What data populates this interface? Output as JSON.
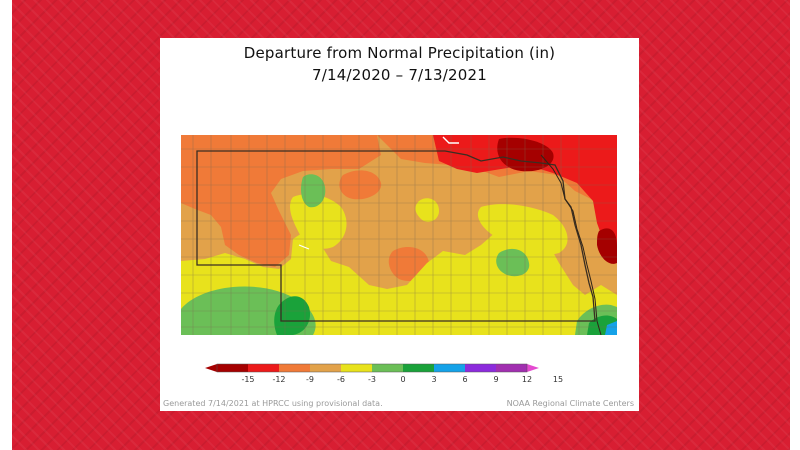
{
  "map": {
    "title": "Departure from Normal Precipitation (in)",
    "date_range": "7/14/2020 – 7/13/2021",
    "legend": {
      "ticks": [
        "-15",
        "-12",
        "-9",
        "-6",
        "-3",
        "0",
        "3",
        "6",
        "9",
        "12",
        "15"
      ],
      "colors": [
        "#a50000",
        "#ec1a1a",
        "#f07a38",
        "#e2a24a",
        "#e8e21c",
        "#6bbf57",
        "#1aa23a",
        "#15a2e8",
        "#8c2bdc",
        "#a12fb0",
        "#e44bd0"
      ]
    },
    "footer_left": "Generated 7/14/2021 at HPRCC using provisional data.",
    "footer_right": "NOAA Regional Climate Centers"
  }
}
